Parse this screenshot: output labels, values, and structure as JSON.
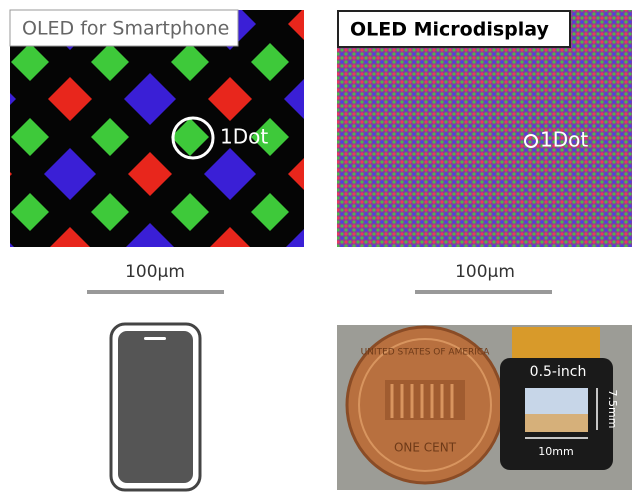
{
  "left_panel": {
    "label": "OLED for Smartphone",
    "dot_label": "1Dot",
    "scale_label": "100μm"
  },
  "right_panel": {
    "label": "OLED Microdisplay",
    "dot_label": "1Dot",
    "scale_label": "100μm"
  },
  "photo": {
    "coin_top": "UNITED STATES OF AMERICA",
    "coin_bottom": "ONE CENT",
    "size_label": "0.5-inch",
    "height_label": "7.5mm",
    "width_label": "10mm"
  }
}
